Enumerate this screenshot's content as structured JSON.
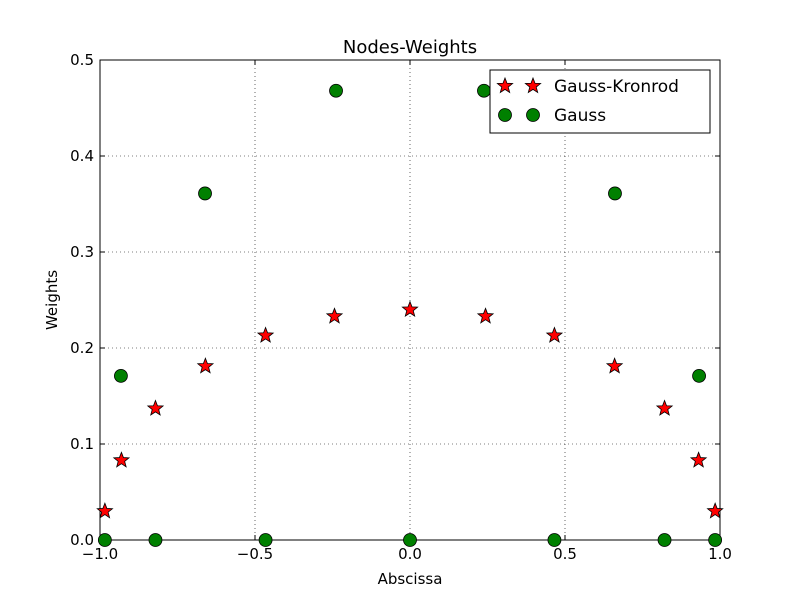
{
  "chart_data": {
    "type": "scatter",
    "title": "Nodes-Weights",
    "xlabel": "Abscissa",
    "ylabel": "Weights",
    "xlim": [
      -1.0,
      1.0
    ],
    "ylim": [
      0.0,
      0.5
    ],
    "xticks": [
      -1.0,
      -0.5,
      0.0,
      0.5,
      1.0
    ],
    "xtick_labels": [
      "−1.0",
      "−0.5",
      "0.0",
      "0.5",
      "1.0"
    ],
    "yticks": [
      0.0,
      0.1,
      0.2,
      0.3,
      0.4,
      0.5
    ],
    "ytick_labels": [
      "0.0",
      "0.1",
      "0.2",
      "0.3",
      "0.4",
      "0.5"
    ],
    "grid": true,
    "legend_position": "top-right",
    "series": [
      {
        "name": "Gauss-Kronrod",
        "marker": "star",
        "color": "#ff0000",
        "x": [
          -0.9843,
          -0.9309,
          -0.8211,
          -0.66,
          -0.4659,
          -0.2436,
          0.0,
          0.2436,
          0.4659,
          0.66,
          0.8211,
          0.9309,
          0.9843
        ],
        "y": [
          0.03,
          0.083,
          0.137,
          0.181,
          0.213,
          0.233,
          0.24,
          0.233,
          0.213,
          0.181,
          0.137,
          0.083,
          0.03
        ]
      },
      {
        "name": "Gauss",
        "marker": "circle",
        "color": "#008000",
        "x": [
          -0.9843,
          -0.9325,
          -0.8211,
          -0.6612,
          -0.4659,
          -0.2386,
          0.0,
          0.2386,
          0.4659,
          0.6612,
          0.8211,
          0.9325,
          0.9843
        ],
        "y": [
          0.0,
          0.171,
          0.0,
          0.361,
          0.0,
          0.468,
          0.0,
          0.468,
          0.0,
          0.361,
          0.0,
          0.171,
          0.0
        ]
      }
    ]
  }
}
